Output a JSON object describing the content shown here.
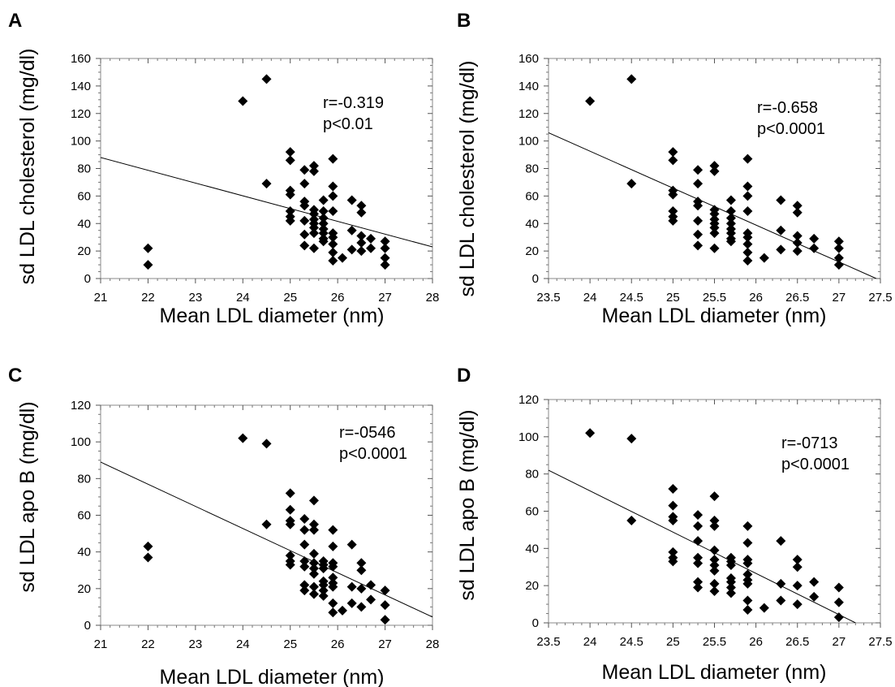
{
  "chart_data": [
    {
      "type": "scatter",
      "panel_label": "A",
      "xlabel": "Mean LDL diameter (nm)",
      "ylabel": "sd LDL cholesterol (mg/dl)",
      "xlim": [
        21,
        28
      ],
      "ylim": [
        0,
        160
      ],
      "xticks": [
        21,
        22,
        23,
        24,
        25,
        26,
        27,
        28
      ],
      "xtick_labels": [
        "21",
        "22",
        "23",
        "24",
        "25",
        "26",
        "27",
        "28"
      ],
      "yticks": [
        0,
        20,
        40,
        60,
        80,
        100,
        120,
        140,
        160
      ],
      "ytick_labels": [
        "0",
        "20",
        "40",
        "60",
        "80",
        "100",
        "120",
        "140",
        "160"
      ],
      "annotation": [
        "r=-0.319",
        "p<0.01"
      ],
      "fit_line": [
        [
          21,
          88
        ],
        [
          28,
          23
        ]
      ],
      "points": [
        [
          22,
          22
        ],
        [
          22,
          10
        ],
        [
          24,
          129
        ],
        [
          24.5,
          145
        ],
        [
          24.5,
          69
        ],
        [
          25,
          92
        ],
        [
          25,
          86
        ],
        [
          25,
          64
        ],
        [
          25,
          61
        ],
        [
          25,
          49
        ],
        [
          25,
          45
        ],
        [
          25,
          42
        ],
        [
          25.3,
          79
        ],
        [
          25.3,
          69
        ],
        [
          25.3,
          56
        ],
        [
          25.3,
          53
        ],
        [
          25.3,
          42
        ],
        [
          25.3,
          32
        ],
        [
          25.3,
          24
        ],
        [
          25.5,
          82
        ],
        [
          25.5,
          78
        ],
        [
          25.5,
          50
        ],
        [
          25.5,
          47
        ],
        [
          25.5,
          43
        ],
        [
          25.5,
          40
        ],
        [
          25.5,
          37
        ],
        [
          25.5,
          33
        ],
        [
          25.5,
          22
        ],
        [
          25.7,
          57
        ],
        [
          25.7,
          49
        ],
        [
          25.7,
          44
        ],
        [
          25.7,
          40
        ],
        [
          25.7,
          36
        ],
        [
          25.7,
          33
        ],
        [
          25.7,
          29
        ],
        [
          25.7,
          27
        ],
        [
          25.9,
          87
        ],
        [
          25.9,
          67
        ],
        [
          25.9,
          60
        ],
        [
          25.9,
          49
        ],
        [
          25.9,
          33
        ],
        [
          25.9,
          30
        ],
        [
          25.9,
          25
        ],
        [
          25.9,
          19
        ],
        [
          25.9,
          13
        ],
        [
          26.1,
          15
        ],
        [
          26.3,
          57
        ],
        [
          26.3,
          35
        ],
        [
          26.3,
          21
        ],
        [
          26.5,
          53
        ],
        [
          26.5,
          48
        ],
        [
          26.5,
          31
        ],
        [
          26.5,
          26
        ],
        [
          26.5,
          20
        ],
        [
          26.7,
          29
        ],
        [
          26.7,
          22
        ],
        [
          27,
          27
        ],
        [
          27,
          22
        ],
        [
          27,
          15
        ],
        [
          27,
          10
        ]
      ]
    },
    {
      "type": "scatter",
      "panel_label": "B",
      "xlabel": "Mean LDL diameter (nm)",
      "ylabel": "sd LDL cholesterol (mg/dl)",
      "xlim": [
        23.5,
        27.5
      ],
      "ylim": [
        0,
        160
      ],
      "xticks": [
        23.5,
        24,
        24.5,
        25,
        25.5,
        26,
        26.5,
        27,
        27.5
      ],
      "xtick_labels": [
        "23.5",
        "24",
        "24.5",
        "25",
        "25.5",
        "26",
        "26.5",
        "27",
        "27.5"
      ],
      "yticks": [
        0,
        20,
        40,
        60,
        80,
        100,
        120,
        140,
        160
      ],
      "ytick_labels": [
        "0",
        "20",
        "40",
        "60",
        "80",
        "100",
        "120",
        "140",
        "160"
      ],
      "annotation": [
        "r=-0.658",
        "p<0.0001"
      ],
      "fit_line": [
        [
          23.5,
          106
        ],
        [
          27.45,
          0
        ]
      ],
      "points": [
        [
          24,
          129
        ],
        [
          24.5,
          145
        ],
        [
          24.5,
          69
        ],
        [
          25,
          92
        ],
        [
          25,
          86
        ],
        [
          25,
          64
        ],
        [
          25,
          61
        ],
        [
          25,
          49
        ],
        [
          25,
          45
        ],
        [
          25,
          42
        ],
        [
          25.3,
          79
        ],
        [
          25.3,
          69
        ],
        [
          25.3,
          56
        ],
        [
          25.3,
          53
        ],
        [
          25.3,
          42
        ],
        [
          25.3,
          32
        ],
        [
          25.3,
          24
        ],
        [
          25.5,
          82
        ],
        [
          25.5,
          78
        ],
        [
          25.5,
          50
        ],
        [
          25.5,
          47
        ],
        [
          25.5,
          43
        ],
        [
          25.5,
          40
        ],
        [
          25.5,
          37
        ],
        [
          25.5,
          33
        ],
        [
          25.5,
          22
        ],
        [
          25.7,
          57
        ],
        [
          25.7,
          49
        ],
        [
          25.7,
          44
        ],
        [
          25.7,
          40
        ],
        [
          25.7,
          36
        ],
        [
          25.7,
          33
        ],
        [
          25.7,
          29
        ],
        [
          25.7,
          27
        ],
        [
          25.9,
          87
        ],
        [
          25.9,
          67
        ],
        [
          25.9,
          60
        ],
        [
          25.9,
          49
        ],
        [
          25.9,
          33
        ],
        [
          25.9,
          30
        ],
        [
          25.9,
          25
        ],
        [
          25.9,
          19
        ],
        [
          25.9,
          13
        ],
        [
          26.1,
          15
        ],
        [
          26.3,
          57
        ],
        [
          26.3,
          35
        ],
        [
          26.3,
          21
        ],
        [
          26.5,
          53
        ],
        [
          26.5,
          48
        ],
        [
          26.5,
          31
        ],
        [
          26.5,
          26
        ],
        [
          26.5,
          20
        ],
        [
          26.7,
          29
        ],
        [
          26.7,
          22
        ],
        [
          27,
          27
        ],
        [
          27,
          22
        ],
        [
          27,
          15
        ],
        [
          27,
          10
        ]
      ]
    },
    {
      "type": "scatter",
      "panel_label": "C",
      "xlabel": "Mean LDL diameter (nm)",
      "ylabel": "sd LDL apo B (mg/dl)",
      "xlim": [
        21,
        28
      ],
      "ylim": [
        0,
        120
      ],
      "xticks": [
        21,
        22,
        23,
        24,
        25,
        26,
        27,
        28
      ],
      "xtick_labels": [
        "21",
        "22",
        "23",
        "24",
        "25",
        "26",
        "27",
        "28"
      ],
      "yticks": [
        0,
        20,
        40,
        60,
        80,
        100,
        120
      ],
      "ytick_labels": [
        "0",
        "20",
        "40",
        "60",
        "80",
        "100",
        "120"
      ],
      "annotation": [
        "r=-0546",
        "p<0.0001"
      ],
      "fit_line": [
        [
          21,
          89
        ],
        [
          28,
          4.5
        ]
      ],
      "points": [
        [
          22,
          43
        ],
        [
          22,
          37
        ],
        [
          24,
          102
        ],
        [
          24.5,
          99
        ],
        [
          24.5,
          55
        ],
        [
          25,
          72
        ],
        [
          25,
          63
        ],
        [
          25,
          57
        ],
        [
          25,
          55
        ],
        [
          25,
          38
        ],
        [
          25,
          35
        ],
        [
          25,
          33
        ],
        [
          25.3,
          58
        ],
        [
          25.3,
          52
        ],
        [
          25.3,
          44
        ],
        [
          25.3,
          35
        ],
        [
          25.3,
          32
        ],
        [
          25.3,
          22
        ],
        [
          25.3,
          19
        ],
        [
          25.5,
          68
        ],
        [
          25.5,
          55
        ],
        [
          25.5,
          52
        ],
        [
          25.5,
          39
        ],
        [
          25.5,
          34
        ],
        [
          25.5,
          31
        ],
        [
          25.5,
          28
        ],
        [
          25.5,
          21
        ],
        [
          25.5,
          17
        ],
        [
          25.7,
          35
        ],
        [
          25.7,
          33
        ],
        [
          25.7,
          31
        ],
        [
          25.7,
          24
        ],
        [
          25.7,
          22
        ],
        [
          25.7,
          19
        ],
        [
          25.7,
          16
        ],
        [
          25.9,
          52
        ],
        [
          25.9,
          43
        ],
        [
          25.9,
          34
        ],
        [
          25.9,
          32
        ],
        [
          25.9,
          26
        ],
        [
          25.9,
          23
        ],
        [
          25.9,
          21
        ],
        [
          25.9,
          12
        ],
        [
          25.9,
          7
        ],
        [
          26.1,
          8
        ],
        [
          26.3,
          44
        ],
        [
          26.3,
          21
        ],
        [
          26.3,
          12
        ],
        [
          26.5,
          34
        ],
        [
          26.5,
          30
        ],
        [
          26.5,
          20
        ],
        [
          26.5,
          10
        ],
        [
          26.7,
          22
        ],
        [
          26.7,
          14
        ],
        [
          27,
          19
        ],
        [
          27,
          11
        ],
        [
          27,
          3
        ]
      ]
    },
    {
      "type": "scatter",
      "panel_label": "D",
      "xlabel": "Mean LDL diameter (nm)",
      "ylabel": "sd LDL apo B (mg/dl)",
      "xlim": [
        23.5,
        27.5
      ],
      "ylim": [
        0,
        120
      ],
      "xticks": [
        23.5,
        24,
        24.5,
        25,
        25.5,
        26,
        26.5,
        27,
        27.5
      ],
      "xtick_labels": [
        "23.5",
        "24",
        "24.5",
        "25",
        "25.5",
        "26",
        "26.5",
        "27",
        "27.5"
      ],
      "yticks": [
        0,
        20,
        40,
        60,
        80,
        100,
        120
      ],
      "ytick_labels": [
        "0",
        "20",
        "40",
        "60",
        "80",
        "100",
        "120"
      ],
      "annotation": [
        "r=-0713",
        "p<0.0001"
      ],
      "fit_line": [
        [
          23.5,
          82
        ],
        [
          27.2,
          0
        ]
      ],
      "points": [
        [
          24,
          102
        ],
        [
          24.5,
          99
        ],
        [
          24.5,
          55
        ],
        [
          25,
          72
        ],
        [
          25,
          63
        ],
        [
          25,
          57
        ],
        [
          25,
          55
        ],
        [
          25,
          38
        ],
        [
          25,
          35
        ],
        [
          25,
          33
        ],
        [
          25.3,
          58
        ],
        [
          25.3,
          52
        ],
        [
          25.3,
          44
        ],
        [
          25.3,
          35
        ],
        [
          25.3,
          32
        ],
        [
          25.3,
          22
        ],
        [
          25.3,
          19
        ],
        [
          25.5,
          68
        ],
        [
          25.5,
          55
        ],
        [
          25.5,
          52
        ],
        [
          25.5,
          39
        ],
        [
          25.5,
          34
        ],
        [
          25.5,
          31
        ],
        [
          25.5,
          28
        ],
        [
          25.5,
          21
        ],
        [
          25.5,
          17
        ],
        [
          25.7,
          35
        ],
        [
          25.7,
          33
        ],
        [
          25.7,
          31
        ],
        [
          25.7,
          24
        ],
        [
          25.7,
          22
        ],
        [
          25.7,
          19
        ],
        [
          25.7,
          16
        ],
        [
          25.9,
          52
        ],
        [
          25.9,
          43
        ],
        [
          25.9,
          34
        ],
        [
          25.9,
          32
        ],
        [
          25.9,
          26
        ],
        [
          25.9,
          23
        ],
        [
          25.9,
          21
        ],
        [
          25.9,
          12
        ],
        [
          25.9,
          7
        ],
        [
          26.1,
          8
        ],
        [
          26.3,
          44
        ],
        [
          26.3,
          21
        ],
        [
          26.3,
          12
        ],
        [
          26.5,
          34
        ],
        [
          26.5,
          30
        ],
        [
          26.5,
          20
        ],
        [
          26.5,
          10
        ],
        [
          26.7,
          22
        ],
        [
          26.7,
          14
        ],
        [
          27,
          19
        ],
        [
          27,
          11
        ],
        [
          27,
          3
        ]
      ]
    }
  ]
}
